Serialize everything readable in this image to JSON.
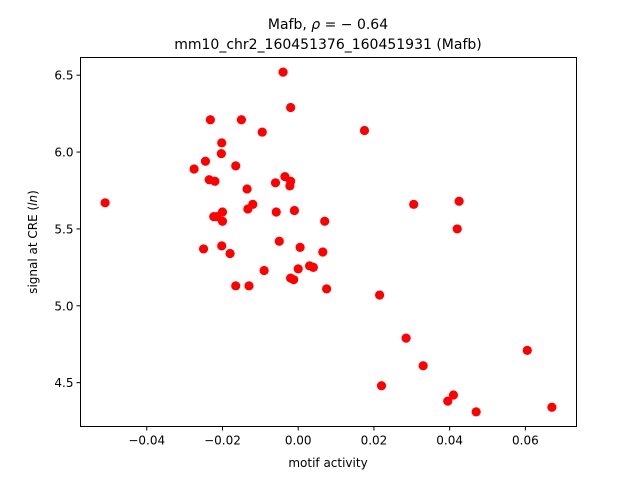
{
  "chart_data": {
    "type": "scatter",
    "title_line1_prefix": "Mafb, ",
    "title_line1_rho": "ρ",
    "title_line1_suffix": " = − 0.64",
    "title_line2": "mm10_chr2_160451376_160451931 (Mafb)",
    "xlabel": "motif activity",
    "ylabel_prefix": "signal at CRE (",
    "ylabel_italic": "ln",
    "ylabel_suffix": ")",
    "xlim": [
      -0.0575,
      0.0735
    ],
    "ylim": [
      4.215,
      6.615
    ],
    "xticks": [
      -0.04,
      -0.02,
      0.0,
      0.02,
      0.04,
      0.06
    ],
    "xtick_labels": [
      "−0.04",
      "−0.02",
      "0.00",
      "0.02",
      "0.04",
      "0.06"
    ],
    "yticks": [
      4.5,
      5.0,
      5.5,
      6.0,
      6.5
    ],
    "ytick_labels": [
      "4.5",
      "5.0",
      "5.5",
      "6.0",
      "6.5"
    ],
    "marker_color": "#ff0000",
    "points": [
      {
        "x": -0.051,
        "y": 5.67
      },
      {
        "x": -0.0275,
        "y": 5.89
      },
      {
        "x": -0.0245,
        "y": 5.94
      },
      {
        "x": -0.0235,
        "y": 5.82
      },
      {
        "x": -0.0232,
        "y": 6.21
      },
      {
        "x": -0.022,
        "y": 5.81
      },
      {
        "x": -0.025,
        "y": 5.37
      },
      {
        "x": -0.0223,
        "y": 5.58
      },
      {
        "x": -0.0215,
        "y": 5.58
      },
      {
        "x": -0.0202,
        "y": 6.06
      },
      {
        "x": -0.0203,
        "y": 5.99
      },
      {
        "x": -0.02,
        "y": 5.61
      },
      {
        "x": -0.02,
        "y": 5.55
      },
      {
        "x": -0.0202,
        "y": 5.39
      },
      {
        "x": -0.018,
        "y": 5.34
      },
      {
        "x": -0.0165,
        "y": 5.91
      },
      {
        "x": -0.0165,
        "y": 5.13
      },
      {
        "x": -0.015,
        "y": 6.21
      },
      {
        "x": -0.0135,
        "y": 5.76
      },
      {
        "x": -0.0133,
        "y": 5.63
      },
      {
        "x": -0.013,
        "y": 5.13
      },
      {
        "x": -0.012,
        "y": 5.66
      },
      {
        "x": -0.0095,
        "y": 6.13
      },
      {
        "x": -0.009,
        "y": 5.23
      },
      {
        "x": -0.006,
        "y": 5.8
      },
      {
        "x": -0.0058,
        "y": 5.61
      },
      {
        "x": -0.005,
        "y": 5.42
      },
      {
        "x": -0.004,
        "y": 6.52
      },
      {
        "x": -0.0035,
        "y": 5.84
      },
      {
        "x": -0.0022,
        "y": 5.78
      },
      {
        "x": -0.002,
        "y": 5.81
      },
      {
        "x": -0.002,
        "y": 6.29
      },
      {
        "x": -0.002,
        "y": 5.18
      },
      {
        "x": -0.0012,
        "y": 5.17
      },
      {
        "x": -0.001,
        "y": 5.62
      },
      {
        "x": 0.0,
        "y": 5.24
      },
      {
        "x": 0.0005,
        "y": 5.38
      },
      {
        "x": 0.003,
        "y": 5.26
      },
      {
        "x": 0.004,
        "y": 5.25
      },
      {
        "x": 0.0065,
        "y": 5.35
      },
      {
        "x": 0.007,
        "y": 5.55
      },
      {
        "x": 0.0075,
        "y": 5.11
      },
      {
        "x": 0.0175,
        "y": 6.14
      },
      {
        "x": 0.0215,
        "y": 5.07
      },
      {
        "x": 0.022,
        "y": 4.48
      },
      {
        "x": 0.0285,
        "y": 4.79
      },
      {
        "x": 0.0305,
        "y": 5.66
      },
      {
        "x": 0.033,
        "y": 4.61
      },
      {
        "x": 0.0395,
        "y": 4.38
      },
      {
        "x": 0.041,
        "y": 4.42
      },
      {
        "x": 0.042,
        "y": 5.5
      },
      {
        "x": 0.0425,
        "y": 5.68
      },
      {
        "x": 0.047,
        "y": 4.31
      },
      {
        "x": 0.0605,
        "y": 4.71
      },
      {
        "x": 0.067,
        "y": 4.34
      }
    ]
  }
}
